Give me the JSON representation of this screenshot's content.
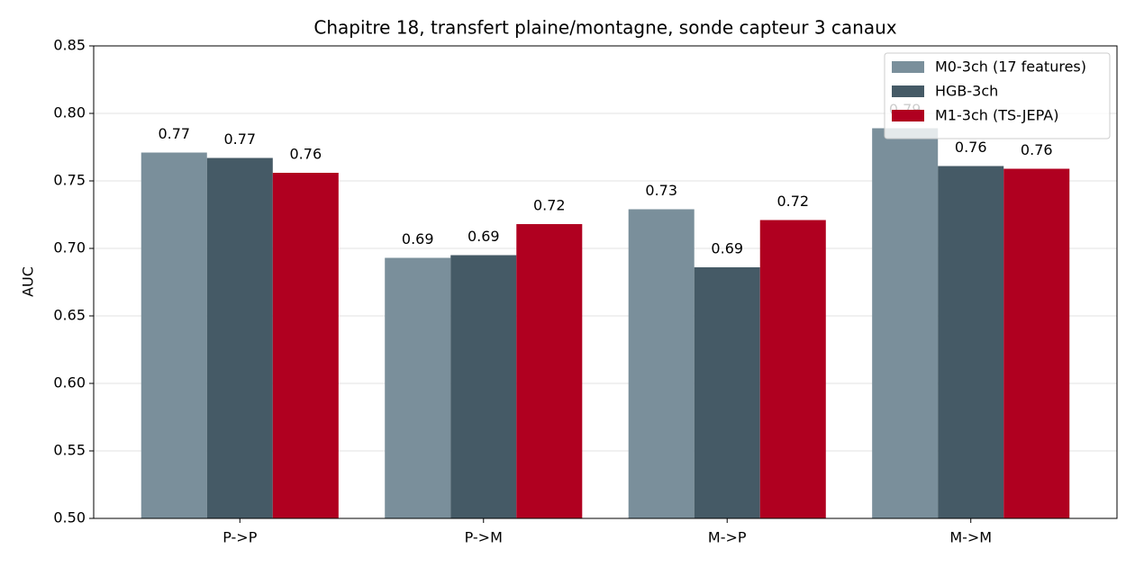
{
  "chart_data": {
    "type": "bar",
    "title": "Chapitre 18, transfert plaine/montagne, sonde capteur 3 canaux",
    "y_label": "AUC",
    "categories": [
      "P->P",
      "P->M",
      "M->P",
      "M->M"
    ],
    "series": [
      {
        "name": "M0-3ch (17 features)",
        "color": "#7a8f9b",
        "values": [
          0.771,
          0.693,
          0.729,
          0.789
        ],
        "value_labels": [
          "0.77",
          "0.69",
          "0.73",
          "0.79"
        ]
      },
      {
        "name": "HGB-3ch",
        "color": "#455a66",
        "values": [
          0.767,
          0.695,
          0.686,
          0.761
        ],
        "value_labels": [
          "0.77",
          "0.69",
          "0.69",
          "0.76"
        ]
      },
      {
        "name": "M1-3ch (TS-JEPA)",
        "color": "#b00020",
        "values": [
          0.756,
          0.718,
          0.721,
          0.759
        ],
        "value_labels": [
          "0.76",
          "0.72",
          "0.72",
          "0.76"
        ]
      }
    ],
    "ylim": [
      0.5,
      0.85
    ],
    "yticks": [
      {
        "value": 0.5,
        "label": "0.50"
      },
      0.55,
      {
        "value": 0.6,
        "label": "0.60"
      },
      0.65,
      {
        "value": 0.7,
        "label": "0.70"
      },
      0.75,
      {
        "value": 0.8,
        "label": "0.80"
      },
      0.85
    ],
    "grid": true,
    "legend": "upper right"
  }
}
